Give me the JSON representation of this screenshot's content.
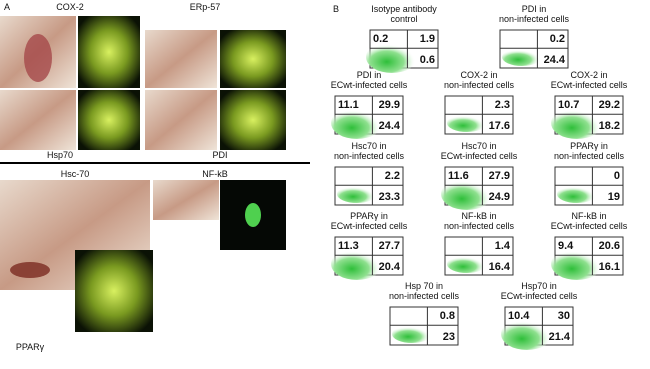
{
  "panel_a": {
    "label": "A",
    "images": [
      {
        "label": "COX-2"
      },
      {
        "label": "ERp-57"
      },
      {
        "label": "Hsp70"
      },
      {
        "label": "PDI"
      },
      {
        "label": "Hsc-70"
      },
      {
        "label": "NF-kB"
      },
      {
        "label": "PPARγ"
      }
    ]
  },
  "panel_b": {
    "label": "B",
    "plots": [
      {
        "title": [
          "Isotype antibody",
          "control"
        ],
        "ul": "0.2",
        "ur": "1.9",
        "lr": "0.6"
      },
      {
        "title": [
          "PDI in",
          "non-infected cells"
        ],
        "ur": "0.2",
        "lr": "24.4"
      },
      {
        "title": [
          "PDI in",
          "ECwt-infected cells"
        ],
        "ul": "11.1",
        "ur": "29.9",
        "lr": "24.4"
      },
      {
        "title": [
          "COX-2 in",
          "non-infected cells"
        ],
        "ur": "2.3",
        "lr": "17.6"
      },
      {
        "title": [
          "COX-2 in",
          "ECwt-infected cells"
        ],
        "ul": "10.7",
        "ur": "29.2",
        "lr": "18.2"
      },
      {
        "title": [
          "Hsc70 in",
          "non-infected cells"
        ],
        "ur": "2.2",
        "lr": "23.3"
      },
      {
        "title": [
          "Hsc70 in",
          "ECwt-infected cells"
        ],
        "ul": "11.6",
        "ur": "27.9",
        "lr": "24.9"
      },
      {
        "title": [
          "PPARγ in",
          "non-infected cells"
        ],
        "ur": "0",
        "lr": "19"
      },
      {
        "title": [
          "PPARγ in",
          "ECwt-infected cells"
        ],
        "ul": "11.3",
        "ur": "27.7",
        "lr": "20.4"
      },
      {
        "title": [
          "NF-kB in",
          "non-infected cells"
        ],
        "ur": "1.4",
        "lr": "16.4"
      },
      {
        "title": [
          "NF-kB in",
          "ECwt-infected cells"
        ],
        "ul": "9.4",
        "ur": "20.6",
        "lr": "16.1"
      },
      {
        "title": [
          "Hsp 70 in",
          "non-infected cells"
        ],
        "ur": "0.8",
        "lr": "23"
      },
      {
        "title": [
          "Hsp70 in",
          "ECwt-infected cells"
        ],
        "ul": "10.4",
        "ur": "30",
        "lr": "21.4"
      }
    ]
  }
}
